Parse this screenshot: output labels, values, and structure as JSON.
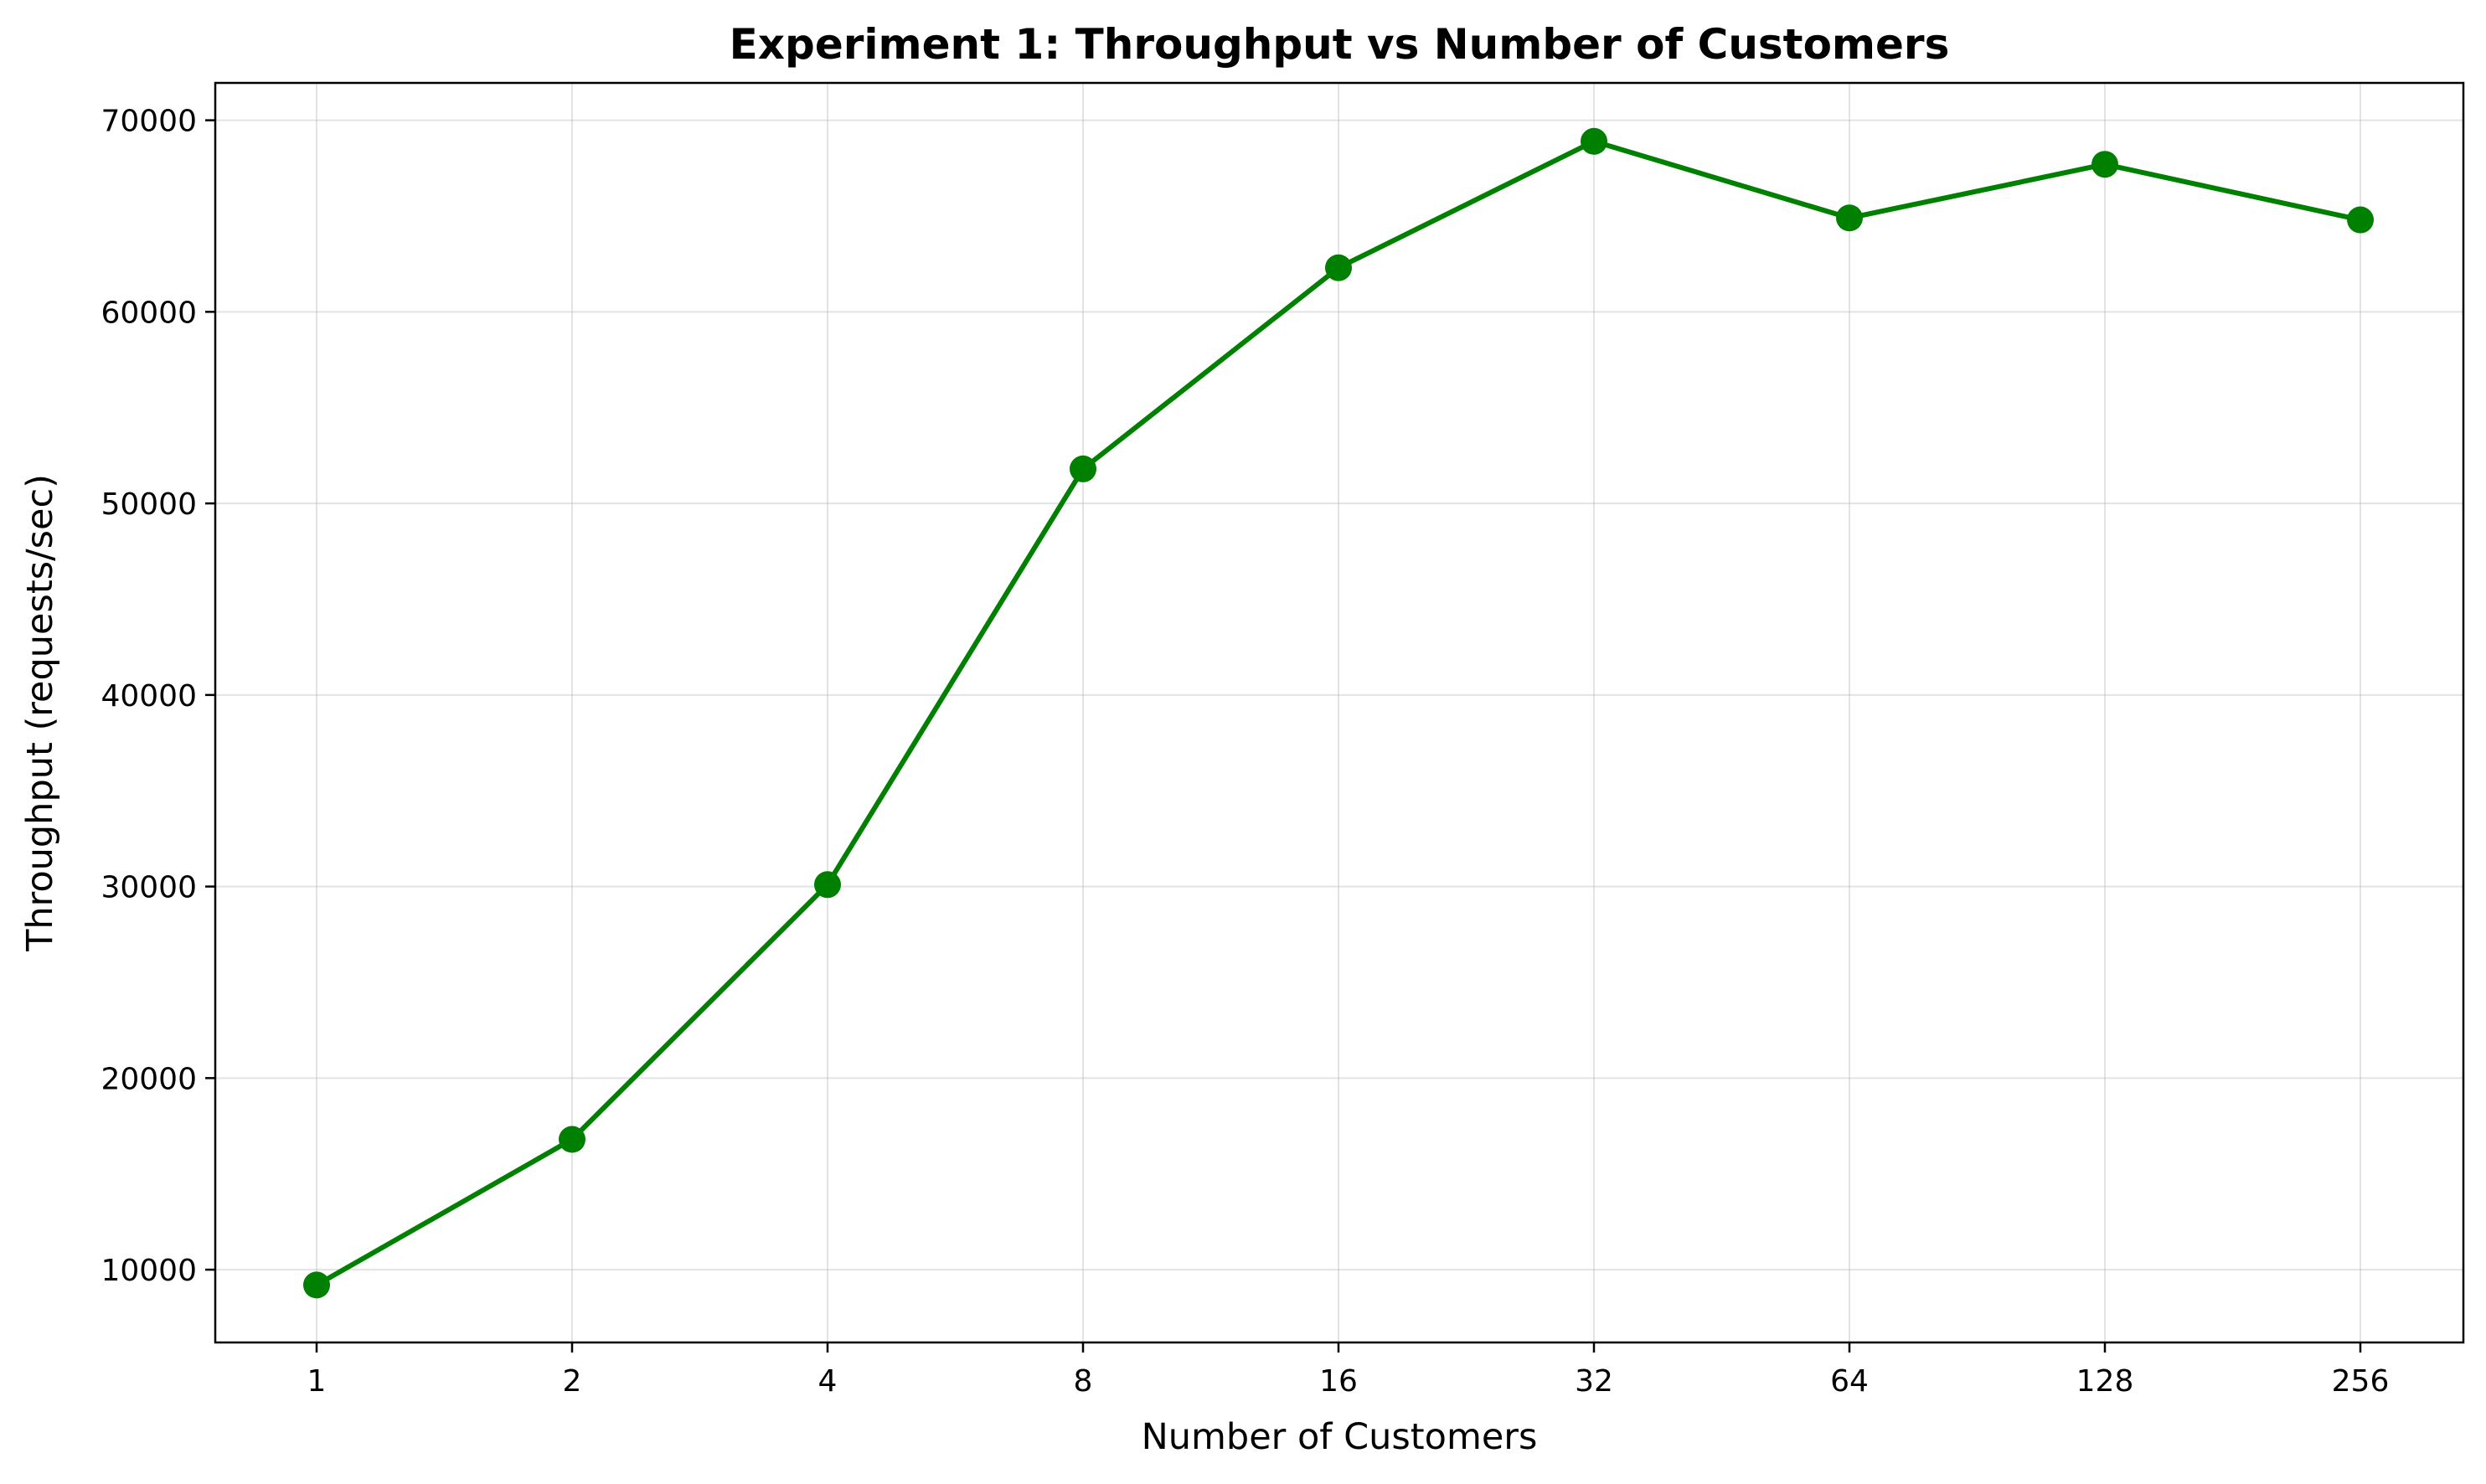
{
  "chart_data": {
    "type": "line",
    "title": "Experiment 1: Throughput vs Number of Customers",
    "xlabel": "Number of Customers",
    "ylabel": "Throughput (requests/sec)",
    "x": [
      "1",
      "2",
      "4",
      "8",
      "16",
      "32",
      "64",
      "128",
      "256"
    ],
    "series": [
      {
        "values": [
          9200,
          16800,
          30100,
          51800,
          62300,
          68900,
          64900,
          67700,
          64800
        ],
        "color": "#008000",
        "marker": "circle"
      }
    ],
    "yticks": [
      10000,
      20000,
      30000,
      40000,
      50000,
      60000,
      70000
    ],
    "ylim": [
      6200,
      71950
    ],
    "x_scale": "log2",
    "grid": true,
    "legend": "none"
  }
}
